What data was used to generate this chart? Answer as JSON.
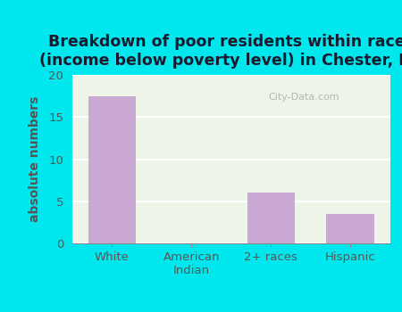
{
  "title": "Breakdown of poor residents within races\n(income below poverty level) in Chester, NE",
  "categories": [
    "White",
    "American\nIndian",
    "2+ races",
    "Hispanic"
  ],
  "values": [
    17.5,
    0,
    6.0,
    3.5
  ],
  "bar_color": "#c9a8d4",
  "ylabel": "absolute numbers",
  "ylim": [
    0,
    20
  ],
  "yticks": [
    0,
    5,
    10,
    15,
    20
  ],
  "background_color": "#00e8ee",
  "plot_bg_color": "#eef5e8",
  "grid_color": "#ffffff",
  "title_fontsize": 12.5,
  "ylabel_fontsize": 10,
  "tick_fontsize": 9.5,
  "watermark": "City-Data.com",
  "title_color": "#1a1a2e",
  "label_color": "#555555"
}
